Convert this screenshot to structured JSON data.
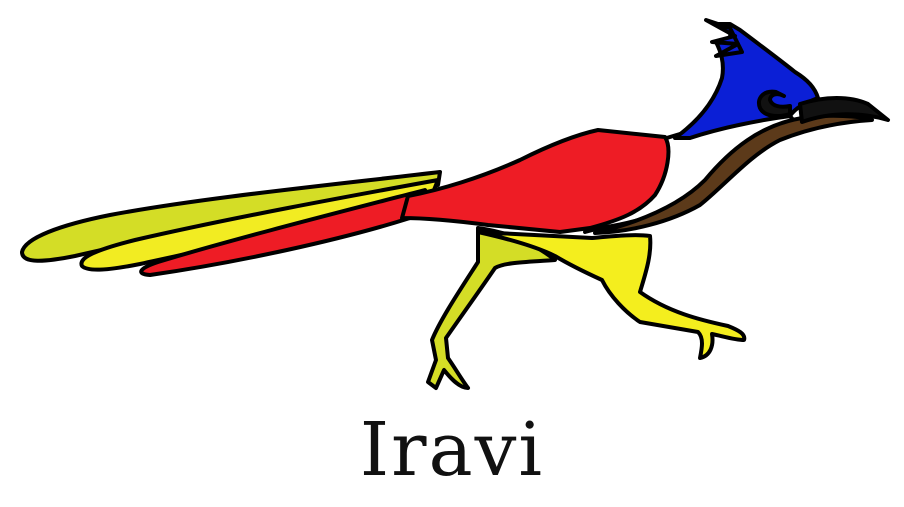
{
  "brand": {
    "name": "Iravi"
  },
  "logo": {
    "icon": "roadrunner-bird-icon",
    "colors": {
      "crest": "#0B1FD6",
      "body": "#EE1C25",
      "neck": "#5C3A1A",
      "tail_yellow_green": "#D4DD26",
      "tail_yellow": "#F2EC22",
      "legs": "#F4EE1E",
      "outline": "#000000"
    }
  }
}
